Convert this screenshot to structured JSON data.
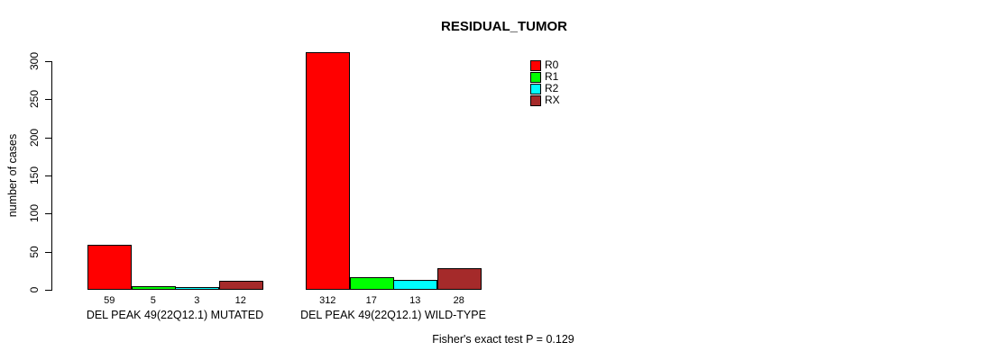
{
  "chart_data": {
    "type": "bar",
    "title": "RESIDUAL_TUMOR",
    "xlabel": "",
    "ylabel": "number of cases",
    "categories": [
      "DEL PEAK 49(22Q12.1) MUTATED",
      "DEL PEAK 49(22Q12.1) WILD-TYPE"
    ],
    "series": [
      {
        "name": "R0",
        "color": "#ff0000",
        "values": [
          59,
          312
        ]
      },
      {
        "name": "R1",
        "color": "#00ff00",
        "values": [
          5,
          17
        ]
      },
      {
        "name": "R2",
        "color": "#00ffff",
        "values": [
          3,
          13
        ]
      },
      {
        "name": "RX",
        "color": "#a52a2a",
        "values": [
          12,
          28
        ]
      }
    ],
    "bar_value_labels": [
      [
        59,
        5,
        3,
        12
      ],
      [
        312,
        17,
        13,
        28
      ]
    ],
    "yticks": [
      0,
      50,
      100,
      150,
      200,
      250,
      300
    ],
    "ylim": [
      0,
      300
    ],
    "grid": false,
    "legend_position": "top-right",
    "legend_entries": [
      {
        "label": "R0",
        "color": "#ff0000"
      },
      {
        "label": "R1",
        "color": "#00ff00"
      },
      {
        "label": "R2",
        "color": "#00ffff"
      },
      {
        "label": "RX",
        "color": "#a52a2a"
      }
    ],
    "annotation": "Fisher's exact test P = 0.129",
    "axis_color": "#000000",
    "background_color": "#ffffff"
  }
}
